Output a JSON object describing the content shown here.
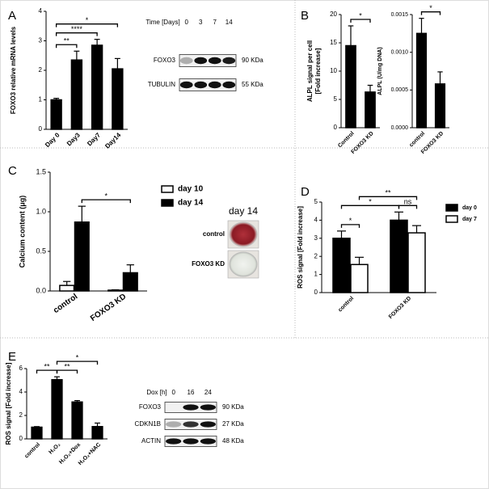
{
  "panel_labels": [
    "A",
    "B",
    "C",
    "D",
    "E"
  ],
  "chart_data": [
    {
      "type": "bar",
      "ylabel": "FOXO3 relative mRNA levels",
      "categories": [
        "Day 0",
        "Day3",
        "Day7",
        "Day14"
      ],
      "series": [
        {
          "color": "#000000",
          "values": [
            1.0,
            2.35,
            2.85,
            2.05
          ],
          "errors": [
            0.05,
            0.3,
            0.2,
            0.35
          ]
        }
      ],
      "ylim": [
        0,
        4
      ],
      "yticks": [
        0,
        1,
        2,
        3,
        4
      ],
      "annotations": [
        {
          "text": "**",
          "from": "Day 0",
          "to": "Day3"
        },
        {
          "text": "****",
          "from": "Day 0",
          "to": "Day7"
        },
        {
          "text": "*",
          "from": "Day 0",
          "to": "Day14"
        }
      ]
    },
    {
      "type": "bar",
      "ylabel": [
        "ALPL signal per cell",
        "[Fold increase]"
      ],
      "categories": [
        "Control",
        "FOXO3 KD"
      ],
      "series": [
        {
          "color": "#000000",
          "values": [
            14.5,
            6.3
          ],
          "errors": [
            3.5,
            1.2
          ]
        }
      ],
      "ylim": [
        0,
        20
      ],
      "yticks": [
        0,
        5,
        10,
        15,
        20
      ],
      "annotations": [
        {
          "text": "*",
          "from": "Control",
          "to": "FOXO3 KD"
        }
      ]
    },
    {
      "type": "bar",
      "ylabel": "ALPL (U/mg DNA)",
      "categories": [
        "control",
        "FOXO3 KD"
      ],
      "series": [
        {
          "color": "#000000",
          "values": [
            0.00125,
            0.00058
          ],
          "errors": [
            0.0002,
            0.00016
          ]
        }
      ],
      "ylim": [
        0,
        0.0015
      ],
      "yticks": [
        {
          "value": 0,
          "label": "0.0000"
        },
        {
          "value": 0.0005,
          "label": "0.0005"
        },
        {
          "value": 0.001,
          "label": "0.0010"
        },
        {
          "value": 0.0015,
          "label": "0.0015"
        }
      ],
      "annotations": [
        {
          "text": "*",
          "from": "control",
          "to": "FOXO3 KD"
        }
      ]
    },
    {
      "type": "bar",
      "ylabel": "Calcium content (μg)",
      "categories": [
        "control",
        "FOXO3 KD"
      ],
      "series": [
        {
          "name": "day 10",
          "color": "#ffffff",
          "values": [
            0.07,
            0.01
          ],
          "errors": [
            0.05,
            0.005
          ]
        },
        {
          "name": "day 14",
          "color": "#000000",
          "values": [
            0.87,
            0.23
          ],
          "errors": [
            0.2,
            0.1
          ]
        }
      ],
      "ylim": [
        0,
        1.5
      ],
      "yticks": [
        {
          "value": 0,
          "label": "0.0"
        },
        {
          "value": 0.5,
          "label": "0.5"
        },
        {
          "value": 1,
          "label": "1.0"
        },
        {
          "value": 1.5,
          "label": "1.5"
        }
      ],
      "legend": "upper right",
      "annotations": [
        {
          "text": "*",
          "from": [
            "control",
            "day 14"
          ],
          "to": [
            "FOXO3 KD",
            "day 14"
          ]
        }
      ]
    },
    {
      "type": "bar",
      "ylabel": "ROS signal [Fold increase]",
      "categories": [
        "control",
        "FOXO3 KD"
      ],
      "series": [
        {
          "name": "day 0",
          "color": "#000000",
          "values": [
            3.0,
            4.0
          ],
          "errors": [
            0.4,
            0.45
          ]
        },
        {
          "name": "day 7",
          "color": "#ffffff",
          "values": [
            1.55,
            3.3
          ],
          "errors": [
            0.4,
            0.4
          ]
        }
      ],
      "ylim": [
        0,
        5
      ],
      "yticks": [
        0,
        1,
        2,
        3,
        4,
        5
      ],
      "legend": "right",
      "annotations": [
        {
          "text": "*",
          "from": [
            "control",
            "day 0"
          ],
          "to": [
            "control",
            "day 7"
          ]
        },
        {
          "text": "ns",
          "from": [
            "FOXO3 KD",
            "day 0"
          ],
          "to": [
            "FOXO3 KD",
            "day 7"
          ]
        },
        {
          "text": "*",
          "from": [
            "control",
            "day 0"
          ],
          "to": [
            "FOXO3 KD",
            "day 0"
          ]
        },
        {
          "text": "**",
          "from": [
            "control",
            "day 7"
          ],
          "to": [
            "FOXO3 KD",
            "day 7"
          ]
        }
      ]
    },
    {
      "type": "bar",
      "ylabel": "ROS signal [Fold increase]",
      "categories": [
        "control",
        "H₂O₂",
        "H₂O₂+Dox",
        "H₂O₂+NAC"
      ],
      "series": [
        {
          "color": "#000000",
          "values": [
            1.0,
            5.05,
            3.15,
            1.05
          ],
          "errors": [
            0.05,
            0.25,
            0.12,
            0.3
          ]
        }
      ],
      "ylim": [
        0,
        6
      ],
      "yticks": [
        0,
        2,
        4,
        6
      ],
      "annotations": [
        {
          "text": "**",
          "from": "control",
          "to": "H₂O₂"
        },
        {
          "text": "**",
          "from": "H₂O₂",
          "to": "H₂O₂+Dox"
        },
        {
          "text": "*",
          "from": "H₂O₂",
          "to": "H₂O₂+NAC"
        }
      ]
    }
  ],
  "blots": [
    {
      "header": "Time [Days]",
      "lanes": [
        "0",
        "3",
        "7",
        "14"
      ],
      "rows": [
        {
          "name": "FOXO3",
          "size": "90 KDa"
        },
        {
          "name": "TUBULIN",
          "size": "55 KDa"
        }
      ]
    },
    {
      "header": "Dox [h]",
      "lanes": [
        "0",
        "16",
        "24"
      ],
      "rows": [
        {
          "name": "FOXO3",
          "size": "90 KDa"
        },
        {
          "name": "CDKN1B",
          "size": "27 KDa"
        },
        {
          "name": "ACTIN",
          "size": "48 KDa"
        }
      ]
    }
  ],
  "photo_panel": {
    "title": "day 14",
    "labels": [
      "control",
      "FOXO3 KD"
    ]
  }
}
